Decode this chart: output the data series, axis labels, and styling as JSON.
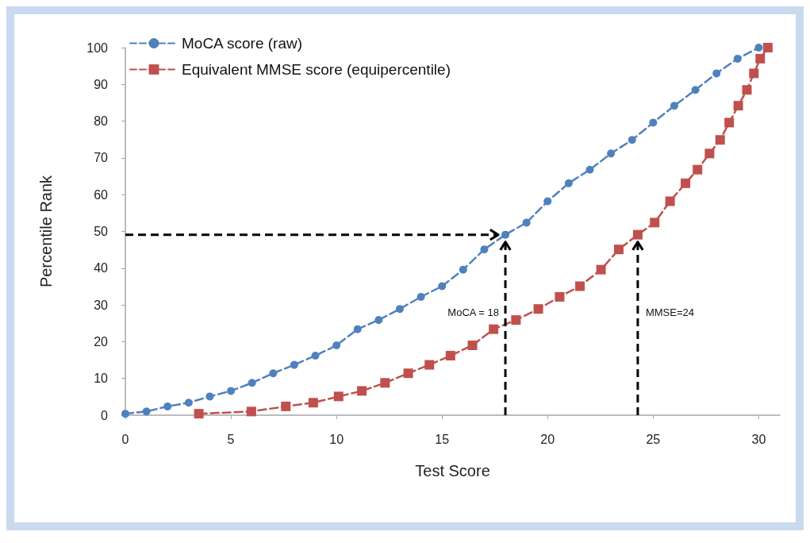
{
  "chart_data": {
    "type": "line",
    "xlabel": "Test Score",
    "ylabel": "Percentile Rank",
    "xlim": [
      0,
      31
    ],
    "xticks": [
      0,
      5,
      10,
      15,
      20,
      25,
      30
    ],
    "ylim": [
      0,
      100
    ],
    "yticks": [
      0,
      10,
      20,
      30,
      40,
      50,
      60,
      70,
      80,
      90,
      100
    ],
    "grid": false,
    "legend": "top left",
    "line_style": "dashed",
    "series": [
      {
        "name": "MoCA score (raw)",
        "color": "#4f81bd",
        "marker": "circle",
        "x": [
          0,
          1,
          2,
          3,
          4,
          5,
          6,
          7,
          8,
          9,
          10,
          11,
          12,
          13,
          14,
          15,
          16,
          17,
          18,
          19,
          20,
          21,
          22,
          23,
          24,
          25,
          26,
          27,
          28,
          29,
          30
        ],
        "values": [
          0.4,
          1,
          2.4,
          3.4,
          5.1,
          6.6,
          8.8,
          11.4,
          13.7,
          16.2,
          19,
          23.4,
          25.9,
          28.9,
          32.2,
          35.1,
          39.6,
          45.1,
          49.1,
          52.4,
          58.2,
          63.1,
          66.8,
          71.2,
          74.9,
          79.6,
          84.2,
          88.5,
          93,
          97,
          100
        ]
      },
      {
        "name": "Equivalent MMSE score (equipercentile)",
        "color": "#c0504d",
        "marker": "square",
        "x": [
          3.48,
          5.97,
          7.6,
          8.9,
          10.1,
          11.2,
          12.3,
          13.4,
          14.4,
          15.4,
          16.44,
          17.44,
          18.5,
          19.56,
          20.57,
          21.53,
          22.53,
          23.37,
          24.27,
          25.07,
          25.8,
          26.53,
          27.1,
          27.67,
          28.17,
          28.6,
          29.03,
          29.44,
          29.77,
          30.07,
          30.43
        ],
        "values": [
          0.4,
          1,
          2.4,
          3.4,
          5.1,
          6.6,
          8.8,
          11.4,
          13.7,
          16.2,
          19,
          23.4,
          25.9,
          28.9,
          32.2,
          35.1,
          39.6,
          45.1,
          49.1,
          52.4,
          58.2,
          63.1,
          66.8,
          71.2,
          74.9,
          79.6,
          84.2,
          88.5,
          93,
          97,
          100
        ]
      }
    ],
    "ref_lines": [
      {
        "axis": "y",
        "value": 49.1,
        "color": "#000000",
        "line_style": "dashed"
      },
      {
        "axis": "x",
        "value": 18,
        "color": "#000000",
        "line_style": "dashed"
      },
      {
        "axis": "x",
        "value": 24.27,
        "color": "#000000",
        "line_style": "dashed"
      }
    ],
    "annotations": [
      {
        "text": "MoCA = 18",
        "x": 18,
        "y": 28
      },
      {
        "text": "MMSE=24",
        "x": 24.27,
        "y": 28
      }
    ]
  }
}
